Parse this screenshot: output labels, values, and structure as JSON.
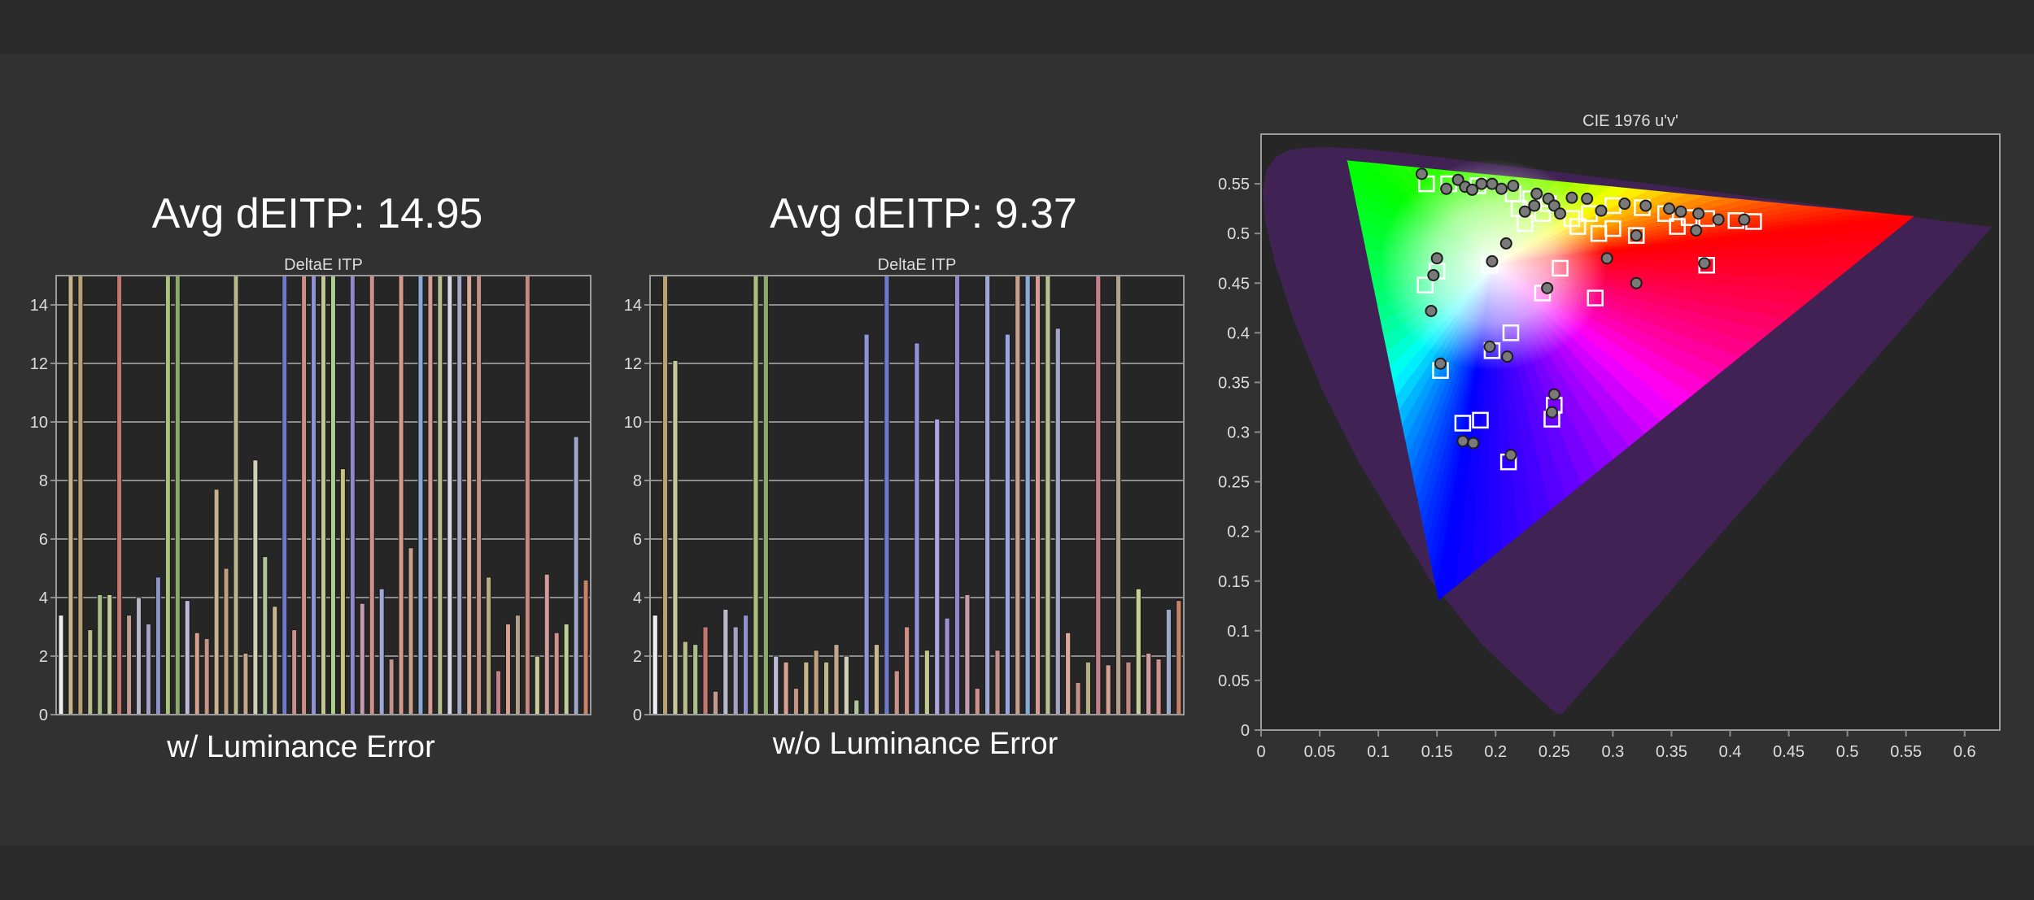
{
  "headings": {
    "left": "Avg dEITP: 14.95",
    "middle": "Avg dEITP: 9.37"
  },
  "captions": {
    "left": "w/ Luminance Error",
    "middle": "w/o Luminance Error"
  },
  "colors": {
    "background": "#2f2f2f",
    "plot_background": "#262626",
    "grid": "#8c8c8c",
    "axis_text": "#dddddd"
  },
  "chart_data": [
    {
      "type": "bar",
      "title": "DeltaE ITP",
      "xlabel": "",
      "ylabel": "",
      "ylim": [
        0,
        15
      ],
      "yticks": [
        0,
        2,
        4,
        6,
        8,
        10,
        12,
        14
      ],
      "grid": true,
      "values": [
        3.4,
        15,
        15,
        2.9,
        4.1,
        4.1,
        15,
        3.4,
        4.0,
        3.1,
        4.7,
        15,
        15,
        3.9,
        2.8,
        2.6,
        7.7,
        5.0,
        15,
        2.1,
        8.7,
        5.4,
        3.7,
        15,
        2.9,
        15,
        15,
        15,
        15,
        8.4,
        15,
        3.8,
        15,
        4.3,
        1.9,
        15,
        5.7,
        15,
        15,
        15,
        15,
        15,
        15,
        15,
        4.7,
        1.5,
        3.1,
        3.4,
        15,
        2.0,
        4.8,
        2.8,
        3.1,
        9.5,
        4.6
      ],
      "bar_colors": [
        "#eeeeee",
        "#c6b58a",
        "#b8a070",
        "#b9bd8a",
        "#a9c08c",
        "#c6c89a",
        "#c4776f",
        "#c49a90",
        "#b9b9cc",
        "#a6a0c6",
        "#8c92cc",
        "#a9c07c",
        "#8aa86a",
        "#bbbbd8",
        "#d8a090",
        "#c49484",
        "#c9b28f",
        "#c0a07c",
        "#b8b88a",
        "#c4a48a",
        "#d0d0b8",
        "#b0c49a",
        "#c9b890",
        "#6f79cc",
        "#c8908a",
        "#cf8f88",
        "#8f93d8",
        "#c0c890",
        "#a9d08a",
        "#c9c27c",
        "#8f88cc",
        "#c49cae",
        "#d0908a",
        "#9ea8d6",
        "#c4908a",
        "#d59a8a",
        "#c89f8a",
        "#88aad8",
        "#d59a90",
        "#b8c090",
        "#d8d8e0",
        "#a4a6c8",
        "#d8a89a",
        "#c49284",
        "#b6ad84",
        "#c6808a",
        "#d8a090",
        "#b1a18c",
        "#c58880",
        "#c6d098",
        "#d09c9c",
        "#d0908c",
        "#c0d094",
        "#9ca8cc",
        "#c9826a"
      ]
    },
    {
      "type": "bar",
      "title": "DeltaE ITP",
      "xlabel": "",
      "ylabel": "",
      "ylim": [
        0,
        15
      ],
      "yticks": [
        0,
        2,
        4,
        6,
        8,
        10,
        12,
        14
      ],
      "grid": true,
      "values": [
        3.4,
        15,
        12.1,
        2.5,
        2.4,
        3.0,
        0.8,
        3.6,
        3.0,
        3.4,
        15,
        15,
        2.0,
        1.8,
        0.9,
        1.8,
        2.2,
        1.8,
        2.4,
        2.0,
        0.5,
        13.0,
        2.4,
        15,
        1.5,
        3.0,
        12.7,
        2.2,
        10.1,
        3.3,
        15,
        4.1,
        0.9,
        15,
        2.2,
        13.0,
        15,
        15,
        15,
        15,
        13.2,
        2.8,
        1.1,
        1.8,
        15,
        1.7,
        15,
        1.8,
        4.3,
        2.1,
        1.9,
        3.6,
        3.9
      ],
      "bar_colors": [
        "#eeeeee",
        "#b8a070",
        "#c6c89a",
        "#b9bd8a",
        "#a9c08c",
        "#c4776f",
        "#c49a90",
        "#b9b9cc",
        "#a6a0c6",
        "#8c92cc",
        "#a9c07c",
        "#8aa86a",
        "#bbbbd8",
        "#d8a090",
        "#c49484",
        "#c9b28f",
        "#c0a07c",
        "#b8b88a",
        "#c4a48a",
        "#d0d0b8",
        "#b0c49a",
        "#8f93d8",
        "#c9b890",
        "#6f79cc",
        "#c8908a",
        "#cf8f88",
        "#8f93d8",
        "#c0c890",
        "#a9a8e0",
        "#9c8fd4",
        "#8f88cc",
        "#c49cae",
        "#d0908a",
        "#9ea8d6",
        "#c4908a",
        "#9aa4e0",
        "#c89f8a",
        "#88aad8",
        "#d59a90",
        "#b8c090",
        "#a4a6c8",
        "#d8a89a",
        "#c49284",
        "#b6ad84",
        "#c6808a",
        "#d8a090",
        "#b1a18c",
        "#c58880",
        "#c6d098",
        "#d09c9c",
        "#d0908c",
        "#9ca8cc",
        "#c9826a"
      ]
    },
    {
      "type": "scatter",
      "title": "CIE 1976 u'v'",
      "xlabel": "",
      "ylabel": "",
      "xlim": [
        0,
        0.63
      ],
      "ylim": [
        0,
        0.6
      ],
      "xticks": [
        "0",
        "0.05",
        "0.1",
        "0.15",
        "0.2",
        "0.25",
        "0.3",
        "0.35",
        "0.4",
        "0.45",
        "0.5",
        "0.55",
        "0.6"
      ],
      "yticks": [
        "0",
        "0.05",
        "0.1",
        "0.15",
        "0.2",
        "0.25",
        "0.3",
        "0.35",
        "0.4",
        "0.45",
        "0.5",
        "0.55"
      ],
      "gamut_primaries": [
        [
          0.556,
          0.517
        ],
        [
          0.0739,
          0.5731
        ],
        [
          0.1515,
          0.1314
        ]
      ],
      "series": [
        {
          "marker": "square",
          "points": [
            [
              0.141,
              0.55
            ],
            [
              0.16,
              0.55
            ],
            [
              0.185,
              0.548
            ],
            [
              0.215,
              0.54
            ],
            [
              0.23,
              0.535
            ],
            [
              0.245,
              0.53
            ],
            [
              0.22,
              0.525
            ],
            [
              0.24,
              0.52
            ],
            [
              0.265,
              0.515
            ],
            [
              0.28,
              0.52
            ],
            [
              0.3,
              0.528
            ],
            [
              0.325,
              0.526
            ],
            [
              0.345,
              0.52
            ],
            [
              0.365,
              0.516
            ],
            [
              0.38,
              0.515
            ],
            [
              0.405,
              0.513
            ],
            [
              0.42,
              0.512
            ],
            [
              0.355,
              0.507
            ],
            [
              0.3,
              0.505
            ],
            [
              0.27,
              0.507
            ],
            [
              0.225,
              0.51
            ],
            [
              0.288,
              0.5
            ],
            [
              0.32,
              0.498
            ],
            [
              0.38,
              0.468
            ],
            [
              0.195,
              0.468
            ],
            [
              0.255,
              0.465
            ],
            [
              0.15,
              0.462
            ],
            [
              0.14,
              0.448
            ],
            [
              0.24,
              0.44
            ],
            [
              0.285,
              0.435
            ],
            [
              0.213,
              0.4
            ],
            [
              0.197,
              0.382
            ],
            [
              0.153,
              0.362
            ],
            [
              0.25,
              0.327
            ],
            [
              0.248,
              0.313
            ],
            [
              0.187,
              0.312
            ],
            [
              0.172,
              0.309
            ],
            [
              0.211,
              0.27
            ]
          ]
        },
        {
          "marker": "circle",
          "points": [
            [
              0.137,
              0.56
            ],
            [
              0.158,
              0.545
            ],
            [
              0.168,
              0.554
            ],
            [
              0.174,
              0.547
            ],
            [
              0.18,
              0.544
            ],
            [
              0.188,
              0.55
            ],
            [
              0.197,
              0.55
            ],
            [
              0.205,
              0.545
            ],
            [
              0.215,
              0.548
            ],
            [
              0.235,
              0.54
            ],
            [
              0.245,
              0.535
            ],
            [
              0.233,
              0.528
            ],
            [
              0.25,
              0.528
            ],
            [
              0.265,
              0.536
            ],
            [
              0.278,
              0.535
            ],
            [
              0.31,
              0.53
            ],
            [
              0.328,
              0.528
            ],
            [
              0.348,
              0.525
            ],
            [
              0.358,
              0.522
            ],
            [
              0.373,
              0.52
            ],
            [
              0.39,
              0.514
            ],
            [
              0.412,
              0.514
            ],
            [
              0.29,
              0.523
            ],
            [
              0.225,
              0.522
            ],
            [
              0.255,
              0.52
            ],
            [
              0.371,
              0.503
            ],
            [
              0.32,
              0.498
            ],
            [
              0.209,
              0.49
            ],
            [
              0.15,
              0.475
            ],
            [
              0.197,
              0.472
            ],
            [
              0.295,
              0.475
            ],
            [
              0.378,
              0.47
            ],
            [
              0.147,
              0.458
            ],
            [
              0.32,
              0.45
            ],
            [
              0.244,
              0.445
            ],
            [
              0.145,
              0.422
            ],
            [
              0.195,
              0.386
            ],
            [
              0.21,
              0.376
            ],
            [
              0.153,
              0.369
            ],
            [
              0.25,
              0.338
            ],
            [
              0.248,
              0.32
            ],
            [
              0.172,
              0.291
            ],
            [
              0.181,
              0.289
            ],
            [
              0.213,
              0.277
            ]
          ]
        }
      ]
    }
  ]
}
